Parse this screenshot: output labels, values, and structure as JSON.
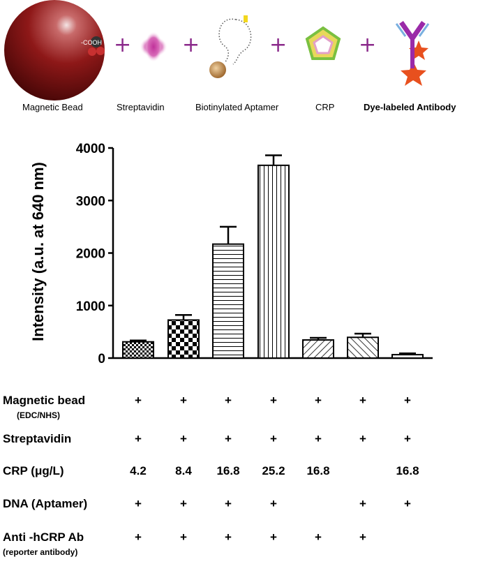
{
  "scheme": {
    "labels": [
      "Magnetic Bead",
      "Streptavidin",
      "Biotinylated Aptamer",
      "CRP",
      "Dye-labeled Antibody"
    ],
    "bead_group": "-COOH",
    "plus_sign": "+"
  },
  "chart_data": {
    "type": "bar",
    "ylabel": "Intensity  (a.u. at 640 nm)",
    "xlabel": "",
    "title": "",
    "ylim": [
      0,
      4000
    ],
    "yticks": [
      "0",
      "1000",
      "2000",
      "3000",
      "4000"
    ],
    "values": [
      310,
      725,
      2170,
      3670,
      345,
      395,
      65
    ],
    "errors": [
      25,
      95,
      330,
      190,
      40,
      70,
      25
    ],
    "patterns": [
      "checker-small",
      "checker-large",
      "horizontal",
      "vertical",
      "diagonal-right",
      "diagonal-left",
      "plain"
    ],
    "grid": false,
    "legend": "none"
  },
  "table": {
    "rows": [
      {
        "label": "Magnetic bead",
        "sublabel": "(EDC/NHS)",
        "cells": [
          "+",
          "+",
          "+",
          "+",
          "+",
          "+",
          "+"
        ]
      },
      {
        "label": "Streptavidin",
        "cells": [
          "+",
          "+",
          "+",
          "+",
          "+",
          "+",
          "+"
        ]
      },
      {
        "label": "CRP (μg/L)",
        "cells": [
          "4.2",
          "8.4",
          "16.8",
          "25.2",
          "16.8",
          "",
          "16.8"
        ]
      },
      {
        "label": "DNA (Aptamer)",
        "cells": [
          "+",
          "+",
          "+",
          "+",
          "",
          "+",
          "+"
        ]
      },
      {
        "label": "Anti -hCRP Ab",
        "sublabel": "(reporter antibody)",
        "cells": [
          "+",
          "+",
          "+",
          "+",
          "+",
          "+",
          ""
        ]
      }
    ]
  }
}
